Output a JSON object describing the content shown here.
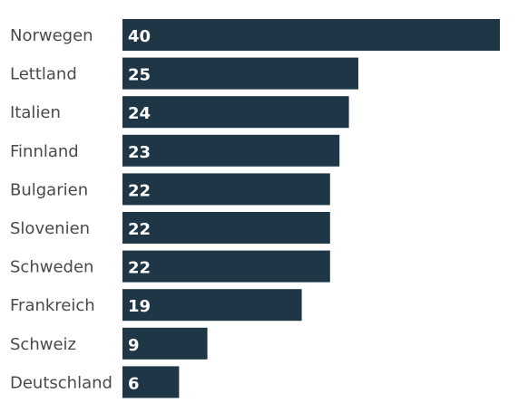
{
  "chart_data": {
    "type": "bar",
    "orientation": "horizontal",
    "categories": [
      "Norwegen",
      "Lettland",
      "Italien",
      "Finnland",
      "Bulgarien",
      "Slovenien",
      "Schweden",
      "Frankreich",
      "Schweiz",
      "Deutschland"
    ],
    "values": [
      40,
      25,
      24,
      23,
      22,
      22,
      22,
      19,
      9,
      6
    ],
    "title": "",
    "xlabel": "",
    "ylabel": "",
    "xlim": [
      0,
      40
    ],
    "grid": false,
    "legend": "none",
    "data_labels": "inside-left"
  },
  "colors": {
    "bar": "#1e3646",
    "label_text": "#4a4a4a",
    "value_text": "#ffffff",
    "background": "#ffffff"
  }
}
